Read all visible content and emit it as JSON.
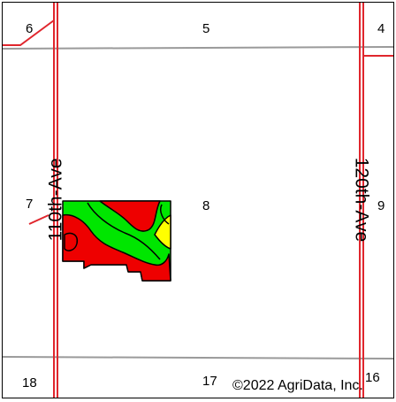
{
  "map": {
    "sections": [
      {
        "id": "6",
        "label": "6"
      },
      {
        "id": "5",
        "label": "5"
      },
      {
        "id": "4",
        "label": "4"
      },
      {
        "id": "7",
        "label": "7"
      },
      {
        "id": "8",
        "label": "8"
      },
      {
        "id": "9",
        "label": "9"
      },
      {
        "id": "18",
        "label": "18"
      },
      {
        "id": "17",
        "label": "17"
      },
      {
        "id": "16",
        "label": "16"
      }
    ],
    "roads": [
      {
        "id": "110th",
        "label": "110th-Ave"
      },
      {
        "id": "120th",
        "label": "120th-Ave"
      }
    ],
    "copyright": "©2022 AgriData, Inc.",
    "colors": {
      "road": "#e0262d",
      "section_line": "#9a9a9a",
      "soil_green": "#00e600",
      "soil_red": "#ee0000",
      "soil_yellow": "#ffff00",
      "outline": "#000000"
    }
  }
}
